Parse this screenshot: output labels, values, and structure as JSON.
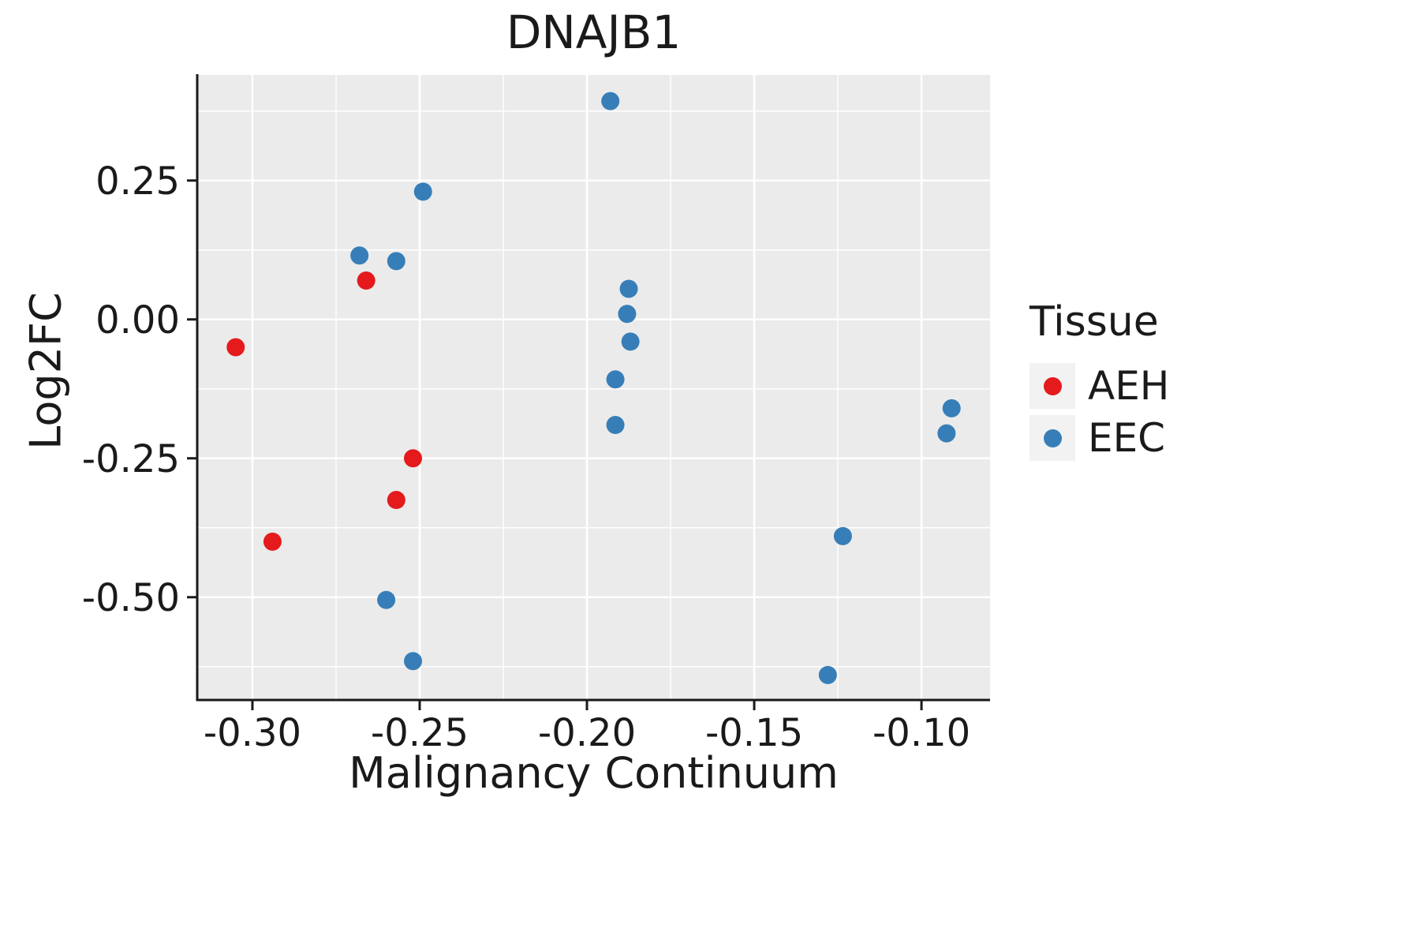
{
  "chart_data": {
    "type": "scatter",
    "title": "DNAJB1",
    "xlabel": "Malignancy Continuum",
    "ylabel": "Log2FC",
    "xlim": [
      -0.3165,
      -0.0795
    ],
    "ylim": [
      -0.685,
      0.44
    ],
    "x_ticks": [
      -0.3,
      -0.25,
      -0.2,
      -0.15,
      -0.1
    ],
    "x_tick_labels": [
      "-0.30",
      "-0.25",
      "-0.20",
      "-0.15",
      "-0.10"
    ],
    "x_minor_ticks": [
      -0.275,
      -0.225,
      -0.175,
      -0.125
    ],
    "y_ticks": [
      0.25,
      0.0,
      -0.25,
      -0.5
    ],
    "y_tick_labels": [
      "0.25",
      "0.00",
      "-0.25",
      "-0.50"
    ],
    "y_minor_ticks": [
      0.375,
      0.125,
      -0.125,
      -0.375,
      -0.625
    ],
    "grid": true,
    "panel_bg": "#EBEBEB",
    "grid_color": "#FFFFFF",
    "axis_color": "#1a1a1a",
    "legend": {
      "title": "Tissue",
      "position": "right",
      "items": [
        {
          "label": "AEH",
          "color": "#E41A1C"
        },
        {
          "label": "EEC",
          "color": "#377EB8"
        }
      ]
    },
    "series": [
      {
        "name": "AEH",
        "color": "#E41A1C",
        "points": [
          [
            -0.305,
            -0.05
          ],
          [
            -0.294,
            -0.4
          ],
          [
            -0.266,
            0.07
          ],
          [
            -0.257,
            -0.325
          ],
          [
            -0.252,
            -0.25
          ]
        ]
      },
      {
        "name": "EEC",
        "color": "#377EB8",
        "points": [
          [
            -0.268,
            0.115
          ],
          [
            -0.257,
            0.105
          ],
          [
            -0.249,
            0.23
          ],
          [
            -0.26,
            -0.505
          ],
          [
            -0.252,
            -0.615
          ],
          [
            -0.193,
            0.393
          ],
          [
            -0.1875,
            0.055
          ],
          [
            -0.188,
            0.01
          ],
          [
            -0.187,
            -0.04
          ],
          [
            -0.1915,
            -0.108
          ],
          [
            -0.1915,
            -0.19
          ],
          [
            -0.1235,
            -0.39
          ],
          [
            -0.128,
            -0.64
          ],
          [
            -0.091,
            -0.16
          ],
          [
            -0.0925,
            -0.205
          ]
        ]
      }
    ]
  }
}
